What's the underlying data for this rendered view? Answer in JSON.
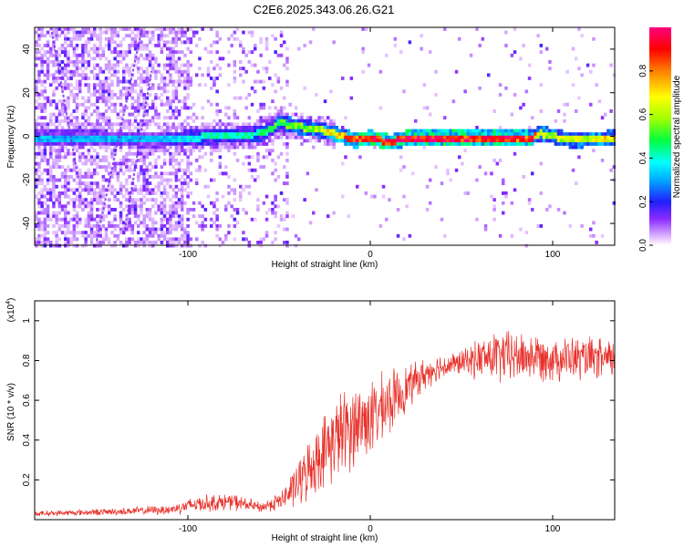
{
  "title": "C2E6.2025.343.06.26.G21",
  "chart_data": [
    {
      "type": "heatmap",
      "title": "C2E6.2025.343.06.26.G21",
      "xlabel": "Height of straight line (km)",
      "ylabel": "Frequency (Hz)",
      "xlim": [
        -184,
        134
      ],
      "ylim": [
        -50,
        50
      ],
      "xticks": [
        -100,
        0,
        100
      ],
      "xtick_labels": [
        "-100",
        "0",
        "100"
      ],
      "yticks": [
        -40,
        -20,
        0,
        20,
        40
      ],
      "ytick_labels": [
        "-40",
        "-20",
        "0",
        "20",
        "40"
      ],
      "colorbar": {
        "label": "Normalized spectral amplitude",
        "range": [
          0,
          1
        ],
        "ticks": [
          0.0,
          0.2,
          0.4,
          0.6,
          0.8
        ],
        "tick_labels": [
          "0.0",
          "0.2",
          "0.4",
          "0.6",
          "0.8"
        ],
        "colormap": "rainbow (white-violet-blue-cyan-green-yellow-red-magenta)"
      },
      "ridge": [
        {
          "x": -184,
          "f": 0,
          "amp": 0.3
        },
        {
          "x": -150,
          "f": 0,
          "amp": 0.32
        },
        {
          "x": -120,
          "f": -1,
          "amp": 0.3
        },
        {
          "x": -100,
          "f": 0,
          "amp": 0.38
        },
        {
          "x": -80,
          "f": 1,
          "amp": 0.42
        },
        {
          "x": -60,
          "f": 2,
          "amp": 0.45
        },
        {
          "x": -50,
          "f": 7,
          "amp": 0.5
        },
        {
          "x": -40,
          "f": 5,
          "amp": 0.55
        },
        {
          "x": -30,
          "f": 4,
          "amp": 0.6
        },
        {
          "x": -20,
          "f": 2,
          "amp": 0.7
        },
        {
          "x": -10,
          "f": -1,
          "amp": 0.85
        },
        {
          "x": 0,
          "f": 0,
          "amp": 0.95
        },
        {
          "x": 10,
          "f": -2,
          "amp": 0.9
        },
        {
          "x": 20,
          "f": 0,
          "amp": 0.95
        },
        {
          "x": 60,
          "f": 0,
          "amp": 0.9
        },
        {
          "x": 88,
          "f": 0,
          "amp": 0.85
        },
        {
          "x": 92,
          "f": 2,
          "amp": 0.6
        },
        {
          "x": 110,
          "f": -1,
          "amp": 0.6
        },
        {
          "x": 134,
          "f": 0,
          "amp": 0.7
        }
      ]
    },
    {
      "type": "line",
      "xlabel": "Height of straight line (km)",
      "ylabel": "SNR (10 * v/v)",
      "y_multiplier_label": "(x10",
      "y_multiplier_exp": "4",
      "y_multiplier_close": ")",
      "xlim": [
        -184,
        134
      ],
      "ylim": [
        0,
        1.1
      ],
      "xticks": [
        -100,
        0,
        100
      ],
      "xtick_labels": [
        "-100",
        "0",
        "100"
      ],
      "yticks": [
        0.2,
        0.4,
        0.6,
        0.8,
        1
      ],
      "ytick_labels": [
        "0.2",
        "0.4",
        "0.6",
        "0.8",
        "1"
      ],
      "color": "#e8302a",
      "series": [
        {
          "name": "SNR",
          "envelope": [
            {
              "x": -184,
              "mean": 0.03,
              "spread": 0.015
            },
            {
              "x": -140,
              "mean": 0.04,
              "spread": 0.02
            },
            {
              "x": -110,
              "mean": 0.05,
              "spread": 0.03
            },
            {
              "x": -95,
              "mean": 0.08,
              "spread": 0.05
            },
            {
              "x": -75,
              "mean": 0.09,
              "spread": 0.05
            },
            {
              "x": -60,
              "mean": 0.06,
              "spread": 0.03
            },
            {
              "x": -48,
              "mean": 0.1,
              "spread": 0.06
            },
            {
              "x": -38,
              "mean": 0.2,
              "spread": 0.15
            },
            {
              "x": -28,
              "mean": 0.32,
              "spread": 0.2
            },
            {
              "x": -18,
              "mean": 0.42,
              "spread": 0.25
            },
            {
              "x": -8,
              "mean": 0.48,
              "spread": 0.25
            },
            {
              "x": 2,
              "mean": 0.52,
              "spread": 0.22
            },
            {
              "x": 12,
              "mean": 0.6,
              "spread": 0.18
            },
            {
              "x": 22,
              "mean": 0.68,
              "spread": 0.12
            },
            {
              "x": 35,
              "mean": 0.76,
              "spread": 0.08
            },
            {
              "x": 50,
              "mean": 0.79,
              "spread": 0.07
            },
            {
              "x": 60,
              "mean": 0.81,
              "spread": 0.12
            },
            {
              "x": 70,
              "mean": 0.82,
              "spread": 0.16
            },
            {
              "x": 90,
              "mean": 0.82,
              "spread": 0.14
            },
            {
              "x": 110,
              "mean": 0.81,
              "spread": 0.13
            },
            {
              "x": 134,
              "mean": 0.8,
              "spread": 0.12
            }
          ]
        }
      ]
    }
  ]
}
